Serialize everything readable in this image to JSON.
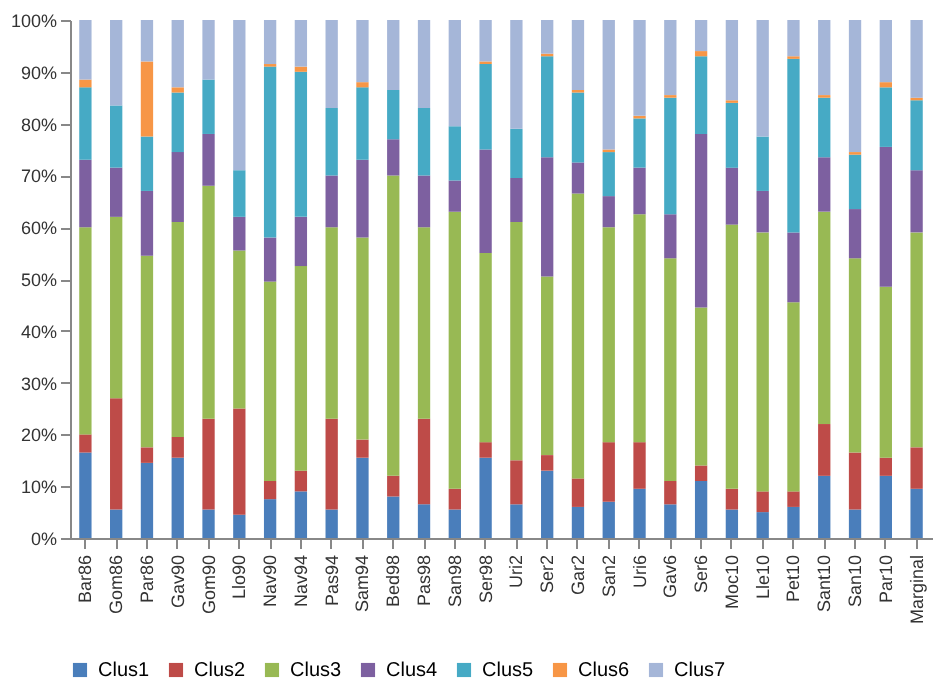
{
  "chart_data": {
    "type": "bar",
    "stacked": true,
    "legend": "bottom",
    "categories": [
      "Bar86",
      "Gom86",
      "Par86",
      "Gav90",
      "Gom90",
      "Llo90",
      "Nav90",
      "Nav94",
      "Pas94",
      "Sam94",
      "Bed98",
      "Pas98",
      "San98",
      "Ser98",
      "Uri2",
      "Ser2",
      "Gar2",
      "San2",
      "Uri6",
      "Gav6",
      "Ser6",
      "Moc10",
      "Lle10",
      "Pet10",
      "Sant10",
      "San10",
      "Par10",
      "Marginal"
    ],
    "series": [
      {
        "name": "Clus1",
        "color": "#4a7ebb",
        "values": [
          16.5,
          5.5,
          14.5,
          15.5,
          5.5,
          4.5,
          7.5,
          9,
          5.5,
          15.5,
          8,
          6.5,
          5.5,
          15.5,
          6.5,
          13,
          6,
          7,
          9.5,
          6.5,
          11,
          5.5,
          5,
          6,
          12,
          5.5,
          12,
          9.5
        ]
      },
      {
        "name": "Clus2",
        "color": "#be4b48",
        "values": [
          3.5,
          21.5,
          3,
          4,
          17.5,
          20.5,
          3.5,
          4,
          17.5,
          3.5,
          4,
          16.5,
          4,
          3,
          8.5,
          3,
          5.5,
          11.5,
          9,
          4.5,
          3,
          4,
          4,
          3,
          10,
          11,
          3.5,
          8
        ]
      },
      {
        "name": "Clus3",
        "color": "#98b954",
        "values": [
          40,
          35,
          37,
          41.5,
          45,
          30.5,
          38.5,
          39.5,
          37,
          39,
          58,
          37,
          53.5,
          36.5,
          46,
          34.5,
          55,
          41.5,
          44,
          43,
          30.5,
          51,
          50,
          36.5,
          41,
          37.5,
          33,
          41.5
        ]
      },
      {
        "name": "Clus4",
        "color": "#7d60a0",
        "values": [
          13,
          9.5,
          12.5,
          13.5,
          10,
          6.5,
          8.5,
          9.5,
          10,
          15,
          7,
          10,
          6,
          20,
          8.5,
          23,
          6,
          6,
          9,
          8.5,
          33.5,
          11,
          8,
          13.5,
          10.5,
          9.5,
          27,
          12
        ]
      },
      {
        "name": "Clus5",
        "color": "#46aac5",
        "values": [
          14,
          12,
          10.5,
          11.5,
          10.5,
          9,
          33,
          28,
          13,
          14,
          9.5,
          13,
          10.5,
          16.5,
          9.5,
          19.5,
          13.5,
          8.5,
          9.5,
          22.5,
          15,
          12.5,
          10.5,
          33.5,
          11.5,
          10.5,
          11.5,
          13.5
        ]
      },
      {
        "name": "Clus6",
        "color": "#f79646",
        "values": [
          1.5,
          0,
          14.5,
          1,
          0,
          0,
          0.5,
          1,
          0,
          1,
          0,
          0,
          0,
          0.5,
          0,
          0.5,
          0.5,
          0.5,
          0.5,
          0.5,
          1,
          0.5,
          0,
          0.5,
          0.5,
          0.5,
          1,
          0.5
        ]
      },
      {
        "name": "Clus7",
        "color": "#a5b6d8",
        "values": [
          11.5,
          16.5,
          8,
          13,
          11.5,
          29,
          8.5,
          9,
          17,
          12,
          13.5,
          17,
          20.5,
          8,
          21,
          6.5,
          13.5,
          25,
          18.5,
          14.5,
          6,
          15.5,
          22.5,
          7,
          14.5,
          25.5,
          12,
          15
        ]
      }
    ],
    "ylim": [
      0,
      100
    ],
    "yticks": [
      {
        "value": 0,
        "label": "0%"
      },
      {
        "value": 10,
        "label": "10%"
      },
      {
        "value": 20,
        "label": "20%"
      },
      {
        "value": 30,
        "label": "30%"
      },
      {
        "value": 40,
        "label": "40%"
      },
      {
        "value": 50,
        "label": "50%"
      },
      {
        "value": 60,
        "label": "60%"
      },
      {
        "value": 70,
        "label": "70%"
      },
      {
        "value": 80,
        "label": "80%"
      },
      {
        "value": 90,
        "label": "90%"
      },
      {
        "value": 100,
        "label": "100%"
      }
    ]
  }
}
